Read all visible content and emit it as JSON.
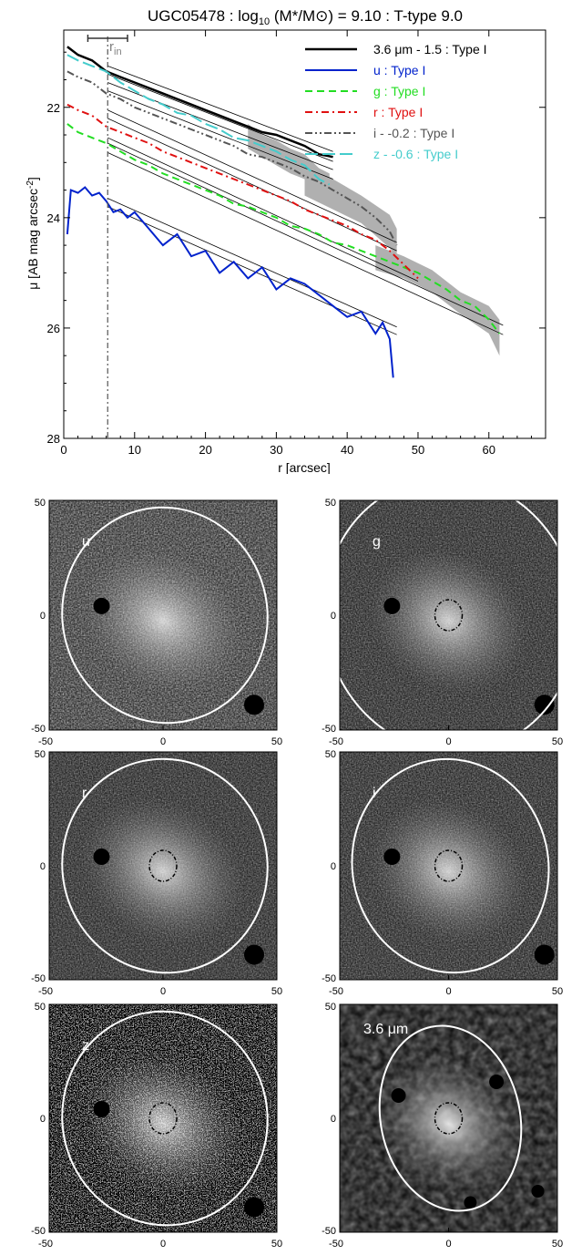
{
  "chart_data": [
    {
      "type": "line",
      "title_main": "UGC05478 : log",
      "title_sub": "10",
      "title_rest": " (M*/M",
      "title_sun": "⊙",
      "title_end": ") = 9.10 : T-type 9.0",
      "xlabel": "r [arcsec]",
      "ylabel": "μ [AB mag arcsec",
      "ylabel_sup": "-2",
      "ylabel_end": "]",
      "xlim": [
        0,
        68
      ],
      "ylim": [
        28,
        20.6
      ],
      "x_ticks": [
        "0",
        "10",
        "20",
        "30",
        "40",
        "50",
        "60"
      ],
      "y_ticks": [
        "22",
        "24",
        "26",
        "28"
      ],
      "r_in_label": "r",
      "r_in_sub": "in",
      "r_in": 6.2,
      "series": [
        {
          "name": "3.6 μm - 1.5 : Type I",
          "color": "#000000",
          "dash": "",
          "x": [
            0.5,
            2,
            4,
            6,
            8,
            10,
            12,
            14,
            16,
            18,
            20,
            22,
            24,
            26,
            28,
            30,
            32,
            34,
            36,
            38
          ],
          "y": [
            20.9,
            21.05,
            21.15,
            21.35,
            21.45,
            21.55,
            21.65,
            21.75,
            21.85,
            21.95,
            22.05,
            22.15,
            22.25,
            22.35,
            22.45,
            22.5,
            22.6,
            22.7,
            22.85,
            22.9
          ]
        },
        {
          "name": "u : Type I",
          "color": "#0022cc",
          "dash": "",
          "x": [
            0.5,
            1,
            2,
            3,
            4,
            5,
            6,
            7,
            8,
            9,
            10,
            12,
            14,
            16,
            18,
            20,
            22,
            24,
            26,
            28,
            30,
            32,
            34,
            36,
            38,
            40,
            42,
            44,
            45,
            46,
            46.5
          ],
          "y": [
            24.3,
            23.5,
            23.55,
            23.45,
            23.6,
            23.55,
            23.7,
            23.9,
            23.85,
            24.0,
            23.9,
            24.2,
            24.5,
            24.3,
            24.7,
            24.6,
            25.0,
            24.8,
            25.1,
            24.9,
            25.3,
            25.1,
            25.2,
            25.4,
            25.6,
            25.8,
            25.7,
            26.1,
            25.9,
            26.2,
            26.9
          ]
        },
        {
          "name": "g : Type I",
          "color": "#22dd22",
          "dash": "8,5",
          "x": [
            0.5,
            2,
            4,
            6,
            8,
            10,
            12,
            14,
            16,
            18,
            20,
            22,
            24,
            26,
            28,
            30,
            32,
            34,
            36,
            38,
            40,
            42,
            44,
            46,
            48,
            50,
            52,
            54,
            56,
            58,
            60,
            61.5
          ],
          "y": [
            22.3,
            22.45,
            22.55,
            22.65,
            22.8,
            22.95,
            23.05,
            23.2,
            23.3,
            23.4,
            23.5,
            23.6,
            23.75,
            23.8,
            23.9,
            24.0,
            24.15,
            24.2,
            24.3,
            24.45,
            24.5,
            24.6,
            24.7,
            24.8,
            24.9,
            25.0,
            25.15,
            25.3,
            25.5,
            25.6,
            25.85,
            26.1
          ]
        },
        {
          "name": "r : Type I",
          "color": "#e01010",
          "dash": "8,4,2,4",
          "x": [
            0.5,
            2,
            4,
            6,
            8,
            10,
            12,
            14,
            16,
            18,
            20,
            22,
            24,
            26,
            28,
            30,
            32,
            34,
            36,
            38,
            40,
            42,
            44,
            46,
            48,
            50
          ],
          "y": [
            21.95,
            22.05,
            22.15,
            22.35,
            22.45,
            22.55,
            22.65,
            22.8,
            22.9,
            23.0,
            23.1,
            23.2,
            23.3,
            23.4,
            23.5,
            23.6,
            23.7,
            23.85,
            23.95,
            24.05,
            24.15,
            24.3,
            24.4,
            24.6,
            24.85,
            25.1
          ]
        },
        {
          "name": "i - -0.2 : Type I",
          "color": "#555555",
          "dash": "8,3,2,3,2,3",
          "x": [
            0.5,
            2,
            4,
            6,
            8,
            10,
            12,
            14,
            16,
            18,
            20,
            22,
            24,
            26,
            28,
            30,
            32,
            34,
            36,
            38,
            40,
            42,
            44,
            46,
            47
          ],
          "y": [
            21.35,
            21.45,
            21.55,
            21.75,
            21.85,
            22.0,
            22.1,
            22.2,
            22.3,
            22.4,
            22.5,
            22.6,
            22.7,
            22.85,
            22.9,
            23.0,
            23.1,
            23.25,
            23.35,
            23.5,
            23.65,
            23.8,
            24.0,
            24.25,
            24.5
          ]
        },
        {
          "name": "z - -0.6 : Type I",
          "color": "#44cccc",
          "dash": "14,5",
          "x": [
            0.5,
            2,
            4,
            6,
            8,
            10,
            12,
            14,
            16,
            18,
            20,
            22,
            24,
            26,
            28,
            30,
            32,
            34,
            36,
            37.5
          ],
          "y": [
            21.05,
            21.15,
            21.25,
            21.35,
            21.55,
            21.7,
            21.85,
            21.95,
            22.1,
            22.15,
            22.3,
            22.4,
            22.55,
            22.6,
            22.7,
            22.8,
            22.95,
            23.05,
            23.3,
            23.4
          ]
        }
      ],
      "fits": [
        {
          "x": [
            6.2,
            38
          ],
          "y": [
            21.25,
            22.8
          ]
        },
        {
          "x": [
            6.2,
            38
          ],
          "y": [
            21.4,
            22.98
          ]
        },
        {
          "x": [
            6.2,
            38
          ],
          "y": [
            21.55,
            23.13
          ]
        },
        {
          "x": [
            6.2,
            38
          ],
          "y": [
            21.7,
            23.3
          ]
        },
        {
          "x": [
            6.2,
            47
          ],
          "y": [
            22.05,
            24.45
          ]
        },
        {
          "x": [
            6.2,
            47
          ],
          "y": [
            22.2,
            24.6
          ]
        },
        {
          "x": [
            6.2,
            50
          ],
          "y": [
            22.55,
            25.15
          ]
        },
        {
          "x": [
            6.2,
            62
          ],
          "y": [
            22.65,
            25.95
          ]
        },
        {
          "x": [
            6.2,
            62
          ],
          "y": [
            22.82,
            26.12
          ]
        },
        {
          "x": [
            6.2,
            47
          ],
          "y": [
            23.65,
            25.98
          ]
        },
        {
          "x": [
            6.2,
            47
          ],
          "y": [
            23.8,
            26.12
          ]
        }
      ],
      "shaded": [
        {
          "x": [
            26,
            28,
            30,
            32,
            34,
            36,
            37.5
          ],
          "lo": [
            22.3,
            22.5,
            22.6,
            22.75,
            22.85,
            23.1,
            23.2
          ],
          "hi": [
            22.75,
            22.9,
            23.05,
            23.2,
            23.3,
            23.55,
            23.6
          ]
        },
        {
          "x": [
            34,
            38,
            42,
            46,
            47
          ],
          "lo": [
            23.0,
            23.3,
            23.6,
            23.95,
            24.2
          ],
          "hi": [
            23.6,
            23.85,
            24.1,
            24.55,
            24.75
          ]
        },
        {
          "x": [
            44,
            48,
            52,
            56,
            60,
            61.5
          ],
          "lo": [
            24.5,
            24.7,
            24.95,
            25.35,
            25.6,
            25.85
          ],
          "hi": [
            24.95,
            25.1,
            25.35,
            25.75,
            26.1,
            26.5
          ]
        }
      ]
    },
    {
      "type": "heatmap",
      "panels": [
        {
          "label": "u",
          "x_ticks": [
            "-50",
            "0",
            "50"
          ],
          "y_ticks": [
            "50",
            "0",
            "-50"
          ]
        },
        {
          "label": "g",
          "x_ticks": [
            "-50",
            "0",
            "50"
          ],
          "y_ticks": [
            "50",
            "0",
            "-50"
          ]
        },
        {
          "label": "r",
          "x_ticks": [
            "-50",
            "0",
            "50"
          ],
          "y_ticks": [
            "50",
            "0",
            "-50"
          ]
        },
        {
          "label": "i",
          "x_ticks": [
            "-50",
            "0",
            "50"
          ],
          "y_ticks": [
            "50",
            "0",
            "-50"
          ]
        },
        {
          "label": "z",
          "x_ticks": [
            "-50",
            "0",
            "50"
          ],
          "y_ticks": [
            "50",
            "0",
            "-50"
          ]
        },
        {
          "label": "3.6 μm",
          "x_ticks": [
            "-50",
            "0",
            "50"
          ],
          "y_ticks": [
            "50",
            "0",
            "-50"
          ]
        }
      ]
    }
  ],
  "colors": {
    "ellipse": "#ffffff",
    "inner_ellipse": "#000000",
    "shade": "#b0b0b0"
  }
}
